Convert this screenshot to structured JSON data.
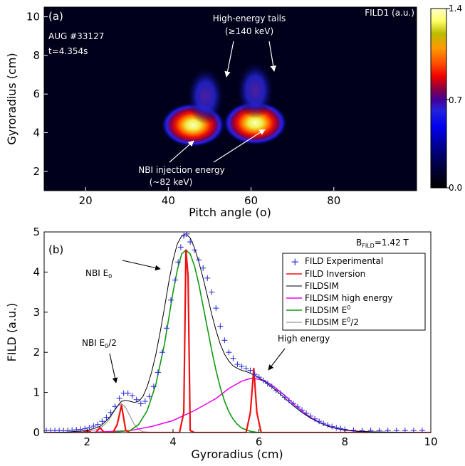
{
  "chart_data": [
    {
      "type": "heatmap",
      "panel_label": "(a)",
      "xlabel": "Pitch angle (o)",
      "ylabel": "Gyroradius (cm)",
      "xlim": [
        10,
        100
      ],
      "ylim": [
        1,
        10.5
      ],
      "xticks": [
        "20",
        "40",
        "60",
        "80"
      ],
      "yticks": [
        "2",
        "4",
        "6",
        "8",
        "10"
      ],
      "colorbar": {
        "title": "FILD1 (a.u.)",
        "ticks": [
          "1.4",
          "0.7",
          "0.0"
        ],
        "range": [
          0,
          1.4
        ]
      },
      "annotations": {
        "shot": "AUG #33127",
        "time": "t=4.354s",
        "tails_line1": "High-energy tails",
        "tails_line2": "(≥140 keV)",
        "nbi_line1": "NBI injection energy",
        "nbi_line2": "(~82 keV)"
      },
      "blobs": [
        {
          "pitch": 46,
          "gyro": 4.4,
          "peak": 1.4
        },
        {
          "pitch": 61,
          "gyro": 4.5,
          "peak": 1.4
        },
        {
          "pitch": 49,
          "gyro": 5.9,
          "peak": 0.4
        },
        {
          "pitch": 61,
          "gyro": 6.2,
          "peak": 0.25
        }
      ]
    },
    {
      "type": "line",
      "panel_label": "(b)",
      "xlabel": "Gyroradius (cm)",
      "ylabel": "FILD (a.u.)",
      "xlim": [
        1,
        10
      ],
      "ylim": [
        0,
        5
      ],
      "xticks": [
        "2",
        "4",
        "6",
        "8",
        "10"
      ],
      "yticks": [
        "0",
        "1",
        "2",
        "3",
        "4",
        "5"
      ],
      "field_label": "B",
      "field_sub": "FILD",
      "field_value": "=1.42 T",
      "annotations": {
        "nbi_e0": "NBI E",
        "nbi_e0_sub": "0",
        "nbi_half": "NBI E",
        "nbi_half_sub": "0",
        "nbi_half_suffix": "/2",
        "high_energy": "High energy"
      },
      "legend": {
        "position": "top-right",
        "entries": [
          {
            "label": "FILD Experimental",
            "color": "#3333dd",
            "marker": "+"
          },
          {
            "label": "FILD Inversion",
            "color": "#ee1111"
          },
          {
            "label": "FILDSIM",
            "color": "#000000"
          },
          {
            "label": "FILDSIM high energy",
            "color": "#ee00ee"
          },
          {
            "label": "FILDSIM E",
            "sub": "0",
            "suffix": "",
            "color": "#119911"
          },
          {
            "label": "FILDSIM E",
            "sub": "0",
            "suffix": "/2",
            "color": "#999999"
          }
        ]
      },
      "series": [
        {
          "name": "FILD Experimental",
          "points": [
            [
              1.05,
              0.05
            ],
            [
              1.15,
              0.05
            ],
            [
              1.25,
              0.05
            ],
            [
              1.35,
              0.05
            ],
            [
              1.45,
              0.05
            ],
            [
              1.55,
              0.05
            ],
            [
              1.65,
              0.06
            ],
            [
              1.75,
              0.07
            ],
            [
              1.85,
              0.08
            ],
            [
              1.95,
              0.1
            ],
            [
              2.05,
              0.12
            ],
            [
              2.15,
              0.16
            ],
            [
              2.25,
              0.2
            ],
            [
              2.35,
              0.28
            ],
            [
              2.45,
              0.38
            ],
            [
              2.55,
              0.5
            ],
            [
              2.65,
              0.65
            ],
            [
              2.75,
              0.85
            ],
            [
              2.85,
              0.98
            ],
            [
              2.95,
              0.98
            ],
            [
              3.05,
              0.92
            ],
            [
              3.15,
              0.82
            ],
            [
              3.25,
              0.72
            ],
            [
              3.35,
              0.78
            ],
            [
              3.45,
              0.9
            ],
            [
              3.55,
              1.15
            ],
            [
              3.65,
              1.5
            ],
            [
              3.75,
              2.0
            ],
            [
              3.85,
              2.6
            ],
            [
              3.95,
              3.3
            ],
            [
              4.05,
              3.8
            ],
            [
              4.12,
              4.25
            ],
            [
              4.18,
              4.62
            ],
            [
              4.25,
              4.9
            ],
            [
              4.32,
              4.95
            ],
            [
              4.4,
              4.75
            ],
            [
              4.5,
              4.55
            ],
            [
              4.6,
              4.3
            ],
            [
              4.7,
              4.1
            ],
            [
              4.8,
              3.85
            ],
            [
              4.9,
              3.5
            ],
            [
              5.0,
              3.1
            ],
            [
              5.1,
              2.65
            ],
            [
              5.2,
              2.3
            ],
            [
              5.3,
              2.0
            ],
            [
              5.4,
              1.85
            ],
            [
              5.5,
              1.7
            ],
            [
              5.6,
              1.65
            ],
            [
              5.7,
              1.6
            ],
            [
              5.8,
              1.55
            ],
            [
              5.9,
              1.45
            ],
            [
              6.0,
              1.38
            ],
            [
              6.1,
              1.3
            ],
            [
              6.2,
              1.22
            ],
            [
              6.3,
              1.15
            ],
            [
              6.4,
              1.05
            ],
            [
              6.5,
              0.98
            ],
            [
              6.6,
              0.88
            ],
            [
              6.7,
              0.8
            ],
            [
              6.8,
              0.72
            ],
            [
              6.9,
              0.64
            ],
            [
              7.0,
              0.56
            ],
            [
              7.1,
              0.48
            ],
            [
              7.2,
              0.41
            ],
            [
              7.3,
              0.34
            ],
            [
              7.4,
              0.28
            ],
            [
              7.5,
              0.23
            ],
            [
              7.6,
              0.19
            ],
            [
              7.7,
              0.15
            ],
            [
              7.8,
              0.12
            ],
            [
              7.9,
              0.1
            ],
            [
              8.0,
              0.08
            ],
            [
              8.2,
              0.06
            ],
            [
              8.4,
              0.05
            ],
            [
              8.6,
              0.05
            ],
            [
              8.8,
              0.05
            ],
            [
              9.0,
              0.05
            ],
            [
              9.2,
              0.05
            ],
            [
              9.4,
              0.05
            ],
            [
              9.6,
              0.05
            ],
            [
              9.8,
              0.05
            ]
          ]
        },
        {
          "name": "FILD Inversion",
          "points": [
            [
              1.0,
              0.0
            ],
            [
              1.9,
              0.0
            ],
            [
              2.0,
              0.05
            ],
            [
              2.1,
              0.0
            ],
            [
              2.2,
              0.0
            ],
            [
              2.3,
              0.12
            ],
            [
              2.4,
              0.0
            ],
            [
              2.6,
              0.0
            ],
            [
              2.7,
              0.2
            ],
            [
              2.8,
              0.68
            ],
            [
              2.9,
              0.05
            ],
            [
              3.0,
              0.0
            ],
            [
              4.15,
              0.0
            ],
            [
              4.25,
              0.5
            ],
            [
              4.3,
              4.55
            ],
            [
              4.35,
              3.9
            ],
            [
              4.4,
              0.05
            ],
            [
              4.5,
              0.0
            ],
            [
              5.7,
              0.0
            ],
            [
              5.8,
              0.5
            ],
            [
              5.88,
              1.6
            ],
            [
              5.95,
              0.5
            ],
            [
              6.05,
              0.0
            ],
            [
              10.0,
              0.0
            ]
          ]
        },
        {
          "name": "FILDSIM",
          "points": [
            [
              1.0,
              0.0
            ],
            [
              1.5,
              0.01
            ],
            [
              2.0,
              0.05
            ],
            [
              2.3,
              0.15
            ],
            [
              2.5,
              0.35
            ],
            [
              2.7,
              0.65
            ],
            [
              2.8,
              0.78
            ],
            [
              2.9,
              0.8
            ],
            [
              3.0,
              0.78
            ],
            [
              3.1,
              0.75
            ],
            [
              3.2,
              0.78
            ],
            [
              3.3,
              0.9
            ],
            [
              3.4,
              1.15
            ],
            [
              3.5,
              1.5
            ],
            [
              3.6,
              1.95
            ],
            [
              3.7,
              2.5
            ],
            [
              3.8,
              3.1
            ],
            [
              3.9,
              3.75
            ],
            [
              4.0,
              4.3
            ],
            [
              4.1,
              4.7
            ],
            [
              4.2,
              4.9
            ],
            [
              4.3,
              4.95
            ],
            [
              4.4,
              4.85
            ],
            [
              4.5,
              4.6
            ],
            [
              4.6,
              4.25
            ],
            [
              4.7,
              3.85
            ],
            [
              4.8,
              3.4
            ],
            [
              4.9,
              2.95
            ],
            [
              5.0,
              2.55
            ],
            [
              5.1,
              2.2
            ],
            [
              5.2,
              1.95
            ],
            [
              5.3,
              1.78
            ],
            [
              5.4,
              1.66
            ],
            [
              5.5,
              1.6
            ],
            [
              5.6,
              1.55
            ],
            [
              5.7,
              1.52
            ],
            [
              5.8,
              1.48
            ],
            [
              5.9,
              1.43
            ],
            [
              6.0,
              1.37
            ],
            [
              6.2,
              1.22
            ],
            [
              6.4,
              1.05
            ],
            [
              6.6,
              0.86
            ],
            [
              6.8,
              0.67
            ],
            [
              7.0,
              0.5
            ],
            [
              7.2,
              0.36
            ],
            [
              7.4,
              0.25
            ],
            [
              7.6,
              0.16
            ],
            [
              7.8,
              0.1
            ],
            [
              8.0,
              0.06
            ],
            [
              8.3,
              0.03
            ],
            [
              8.6,
              0.02
            ],
            [
              9.0,
              0.01
            ],
            [
              10.0,
              0.0
            ]
          ]
        },
        {
          "name": "FILDSIM high energy",
          "points": [
            [
              1.0,
              0.0
            ],
            [
              2.0,
              0.0
            ],
            [
              3.0,
              0.05
            ],
            [
              3.5,
              0.15
            ],
            [
              4.0,
              0.3
            ],
            [
              4.5,
              0.55
            ],
            [
              5.0,
              0.85
            ],
            [
              5.3,
              1.1
            ],
            [
              5.6,
              1.28
            ],
            [
              5.8,
              1.35
            ],
            [
              6.0,
              1.33
            ],
            [
              6.2,
              1.25
            ],
            [
              6.4,
              1.1
            ],
            [
              6.6,
              0.92
            ],
            [
              6.8,
              0.72
            ],
            [
              7.0,
              0.54
            ],
            [
              7.2,
              0.38
            ],
            [
              7.4,
              0.26
            ],
            [
              7.6,
              0.17
            ],
            [
              7.8,
              0.11
            ],
            [
              8.0,
              0.06
            ],
            [
              8.3,
              0.03
            ],
            [
              8.7,
              0.01
            ],
            [
              9.2,
              0.0
            ],
            [
              10.0,
              0.0
            ]
          ]
        },
        {
          "name": "FILDSIM E0",
          "points": [
            [
              1.0,
              0.0
            ],
            [
              2.5,
              0.0
            ],
            [
              3.0,
              0.05
            ],
            [
              3.2,
              0.2
            ],
            [
              3.4,
              0.55
            ],
            [
              3.6,
              1.2
            ],
            [
              3.8,
              2.2
            ],
            [
              3.9,
              2.85
            ],
            [
              4.0,
              3.5
            ],
            [
              4.1,
              4.05
            ],
            [
              4.2,
              4.45
            ],
            [
              4.3,
              4.55
            ],
            [
              4.4,
              4.45
            ],
            [
              4.5,
              4.15
            ],
            [
              4.6,
              3.7
            ],
            [
              4.7,
              3.15
            ],
            [
              4.8,
              2.6
            ],
            [
              4.9,
              2.05
            ],
            [
              5.0,
              1.55
            ],
            [
              5.1,
              1.12
            ],
            [
              5.2,
              0.78
            ],
            [
              5.3,
              0.52
            ],
            [
              5.4,
              0.33
            ],
            [
              5.5,
              0.2
            ],
            [
              5.6,
              0.11
            ],
            [
              5.8,
              0.03
            ],
            [
              6.0,
              0.0
            ],
            [
              10.0,
              0.0
            ]
          ]
        },
        {
          "name": "FILDSIM E0/2",
          "points": [
            [
              1.0,
              0.0
            ],
            [
              2.0,
              0.02
            ],
            [
              2.3,
              0.1
            ],
            [
              2.5,
              0.3
            ],
            [
              2.6,
              0.48
            ],
            [
              2.7,
              0.65
            ],
            [
              2.8,
              0.72
            ],
            [
              2.9,
              0.62
            ],
            [
              3.0,
              0.4
            ],
            [
              3.1,
              0.2
            ],
            [
              3.2,
              0.08
            ],
            [
              3.3,
              0.02
            ],
            [
              3.5,
              0.0
            ],
            [
              10.0,
              0.0
            ]
          ]
        }
      ]
    }
  ]
}
